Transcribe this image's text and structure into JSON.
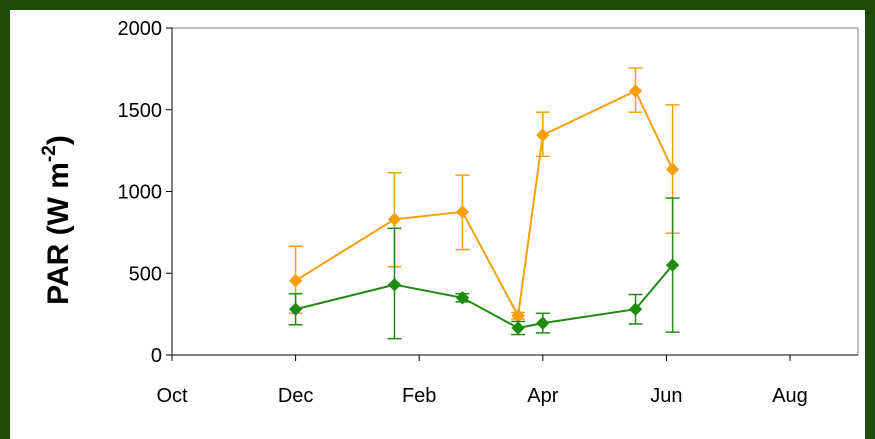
{
  "chart_data": {
    "type": "line",
    "title": "",
    "xlabel": "",
    "ylabel": "PAR (W m",
    "ylabel_superscript": "-2",
    "ylabel_close": ")",
    "ylim": [
      0,
      2000
    ],
    "yticks": [
      "0",
      "500",
      "1000",
      "1500",
      "2000"
    ],
    "ytick_values": [
      0,
      500,
      1000,
      1500,
      2000
    ],
    "xticks": [
      "Oct",
      "Dec",
      "Feb",
      "Apr",
      "Jun",
      "Aug"
    ],
    "xtick_values": [
      0,
      2,
      4,
      6,
      8,
      10
    ],
    "xlim": [
      0,
      11.1
    ],
    "grid": false,
    "legend": "none",
    "series": [
      {
        "color": "#f5a00e",
        "points": [
          {
            "x": 2.0,
            "y": 455,
            "err_lo": 200,
            "err_hi": 210
          },
          {
            "x": 3.6,
            "y": 830,
            "err_lo": 290,
            "err_hi": 285
          },
          {
            "x": 4.7,
            "y": 875,
            "err_lo": 230,
            "err_hi": 225
          },
          {
            "x": 5.6,
            "y": 240,
            "err_lo": 20,
            "err_hi": 20
          },
          {
            "x": 6.0,
            "y": 1345,
            "err_lo": 130,
            "err_hi": 140
          },
          {
            "x": 7.5,
            "y": 1615,
            "err_lo": 130,
            "err_hi": 140
          },
          {
            "x": 8.1,
            "y": 1135,
            "err_lo": 390,
            "err_hi": 395
          }
        ]
      },
      {
        "color": "#1e8c0e",
        "points": [
          {
            "x": 2.0,
            "y": 280,
            "err_lo": 95,
            "err_hi": 95
          },
          {
            "x": 3.6,
            "y": 430,
            "err_lo": 330,
            "err_hi": 345
          },
          {
            "x": 4.7,
            "y": 350,
            "err_lo": 25,
            "err_hi": 25
          },
          {
            "x": 5.6,
            "y": 165,
            "err_lo": 40,
            "err_hi": 40
          },
          {
            "x": 6.0,
            "y": 195,
            "err_lo": 60,
            "err_hi": 60
          },
          {
            "x": 7.5,
            "y": 280,
            "err_lo": 90,
            "err_hi": 90
          },
          {
            "x": 8.1,
            "y": 550,
            "err_lo": 410,
            "err_hi": 410
          }
        ]
      }
    ]
  }
}
